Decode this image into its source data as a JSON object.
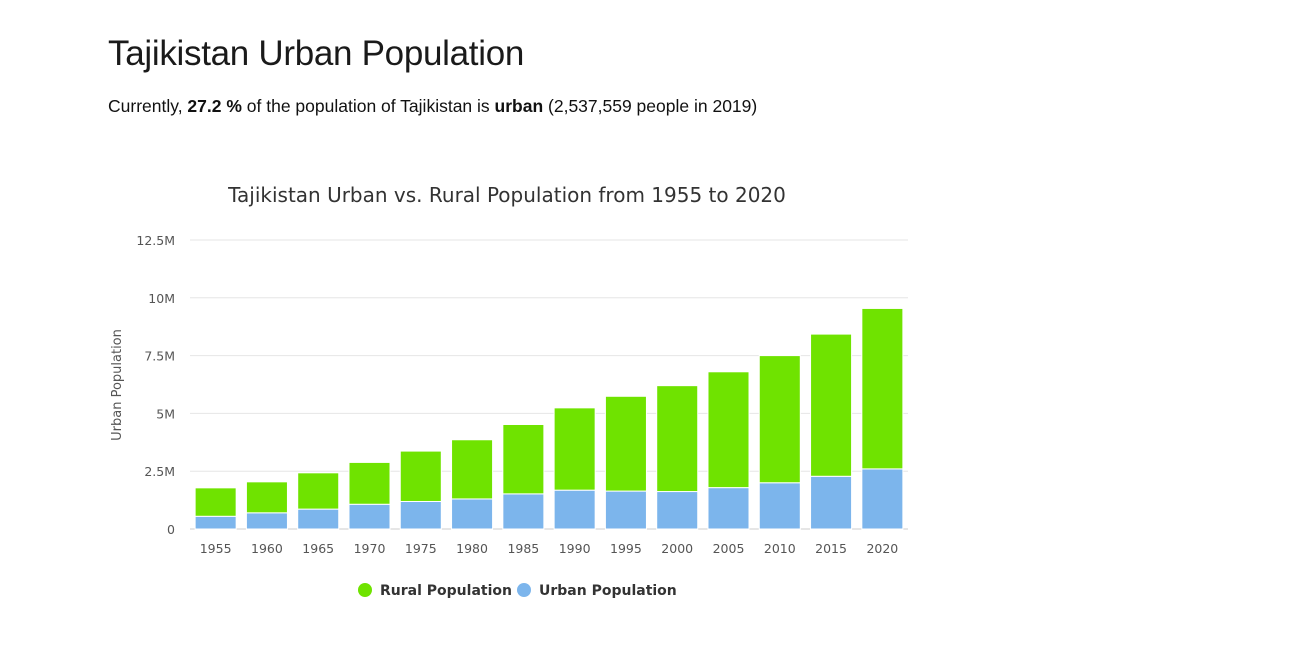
{
  "page": {
    "title": "Tajikistan Urban Population",
    "summary": {
      "prefix": "Currently, ",
      "percent": "27.2 %",
      "middle": " of the population of Tajikistan is ",
      "urban_word": "urban",
      "suffix": " (2,537,559 people in 2019)"
    }
  },
  "chart_data": {
    "type": "bar",
    "stacked": true,
    "title": "Tajikistan Urban vs. Rural Population from 1955 to 2020",
    "xlabel": "",
    "ylabel": "Urban Population",
    "ylim": [
      0,
      12500000
    ],
    "y_ticks": [
      0,
      2500000,
      5000000,
      7500000,
      10000000,
      12500000
    ],
    "y_tick_labels": [
      "0",
      "2.5M",
      "5M",
      "7.5M",
      "10M",
      "12.5M"
    ],
    "grid": true,
    "legend_position": "bottom",
    "categories": [
      "1955",
      "1960",
      "1965",
      "1970",
      "1975",
      "1980",
      "1985",
      "1990",
      "1995",
      "2000",
      "2005",
      "2010",
      "2015",
      "2020"
    ],
    "series": [
      {
        "name": "Urban Population",
        "color": "#7cb5ec",
        "values": [
          550000,
          700000,
          860000,
          1070000,
          1190000,
          1300000,
          1520000,
          1680000,
          1640000,
          1620000,
          1790000,
          2000000,
          2280000,
          2600000
        ]
      },
      {
        "name": "Rural Population",
        "color": "#6fe300",
        "values": [
          1230000,
          1340000,
          1570000,
          1810000,
          2180000,
          2560000,
          3000000,
          3560000,
          4100000,
          4580000,
          5010000,
          5500000,
          6150000,
          6940000
        ]
      }
    ],
    "legend_order": [
      "Rural Population",
      "Urban Population"
    ]
  }
}
